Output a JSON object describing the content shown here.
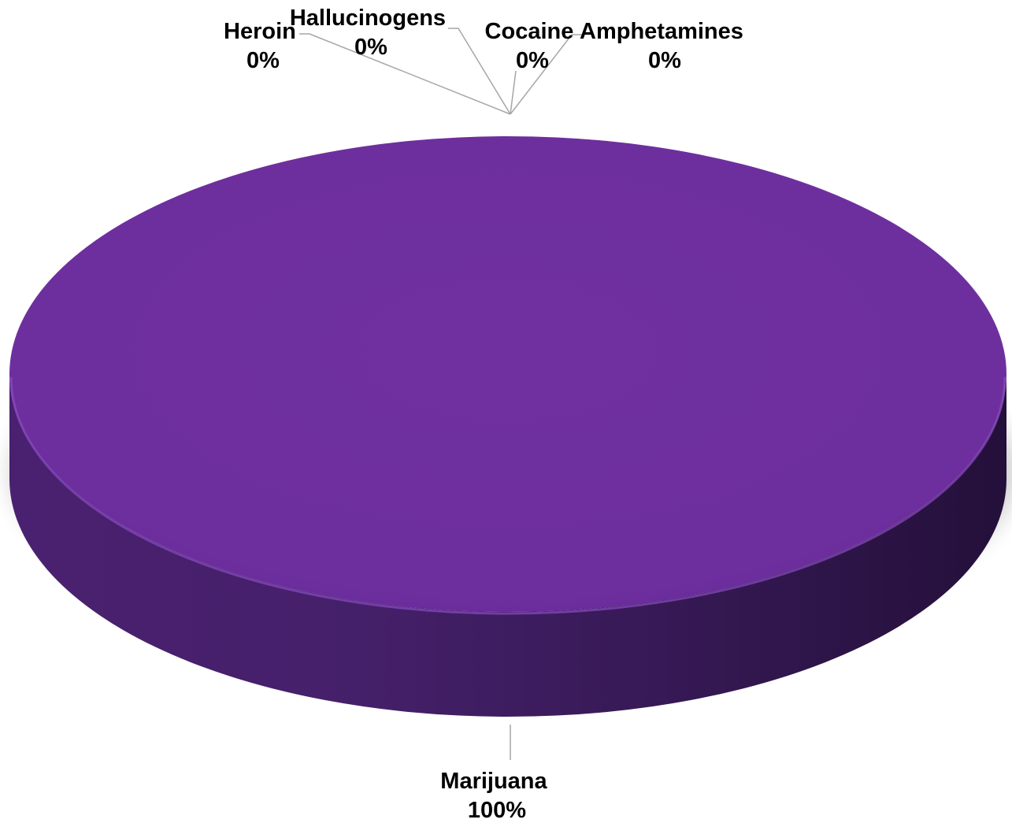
{
  "chart_data": {
    "type": "pie",
    "style": "3d",
    "slices": [
      {
        "label": "Marijuana",
        "value": 100,
        "display": "100%",
        "color": "#7030A0"
      },
      {
        "label": "Heroin",
        "value": 0,
        "display": "0%",
        "color": "#7030A0"
      },
      {
        "label": "Hallucinogens",
        "value": 0,
        "display": "0%",
        "color": "#7030A0"
      },
      {
        "label": "Cocaine",
        "value": 0,
        "display": "0%",
        "color": "#7030A0"
      },
      {
        "label": "Amphetamines",
        "value": 0,
        "display": "0%",
        "color": "#7030A0"
      }
    ],
    "legend": "none",
    "data_labels": "outside with leader lines"
  }
}
